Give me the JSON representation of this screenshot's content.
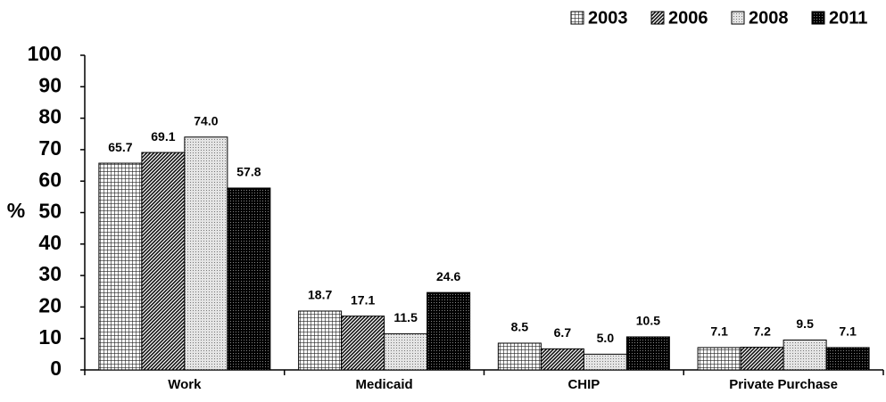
{
  "chart_data": {
    "type": "bar",
    "y_label": "%",
    "categories": [
      "Work",
      "Medicaid",
      "CHIP",
      "Private Purchase"
    ],
    "series": [
      {
        "name": "2003",
        "values": [
          65.7,
          18.7,
          8.5,
          7.1
        ],
        "value_labels": [
          "65.7",
          "18.7",
          "8.5",
          "7.1"
        ]
      },
      {
        "name": "2006",
        "values": [
          69.1,
          17.1,
          6.7,
          7.2
        ],
        "value_labels": [
          "69.1",
          "17.1",
          "6.7",
          "7.2"
        ]
      },
      {
        "name": "2008",
        "values": [
          74.0,
          11.5,
          5.0,
          9.5
        ],
        "value_labels": [
          "74.0",
          "11.5",
          "5.0",
          "9.5"
        ]
      },
      {
        "name": "2011",
        "values": [
          57.8,
          24.6,
          10.5,
          7.1
        ],
        "value_labels": [
          "57.8",
          "24.6",
          "10.5",
          "7.1"
        ]
      }
    ],
    "ylim": [
      0,
      100
    ],
    "yticks": [
      0,
      10,
      20,
      30,
      40,
      50,
      60,
      70,
      80,
      90,
      100
    ],
    "legend": "top-right"
  }
}
